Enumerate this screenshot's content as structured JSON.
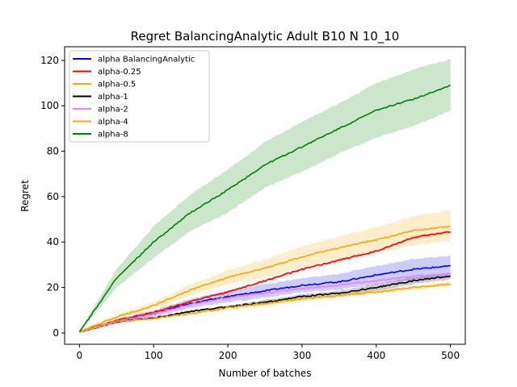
{
  "chart_data": {
    "type": "line",
    "title": "Regret BalancingAnalytic Adult B10 N 10_10",
    "xlabel": "Number of batches",
    "ylabel": "Regret",
    "xlim": [
      -20,
      520
    ],
    "ylim": [
      -5,
      126
    ],
    "xticks": [
      "0",
      "100",
      "200",
      "300",
      "400",
      "500"
    ],
    "yticks": [
      "0",
      "20",
      "40",
      "60",
      "80",
      "100",
      "120"
    ],
    "grid": false,
    "legend_position": "top-left",
    "shaded_band": "confidence interval",
    "x": [
      0,
      50,
      100,
      150,
      200,
      250,
      300,
      350,
      400,
      450,
      500
    ],
    "series": [
      {
        "name": "alpha BalancingAnalytic",
        "color": "#0000ff",
        "values": [
          0.5,
          5.0,
          8.5,
          13.0,
          16.0,
          18.5,
          21.0,
          22.5,
          25.5,
          28.0,
          29.5
        ],
        "lower": [
          0.0,
          4.0,
          7.0,
          11.0,
          13.5,
          15.5,
          18.0,
          19.0,
          21.5,
          23.5,
          25.0
        ],
        "upper": [
          1.0,
          6.0,
          10.0,
          15.0,
          18.5,
          21.5,
          24.0,
          26.0,
          29.5,
          32.5,
          34.0
        ]
      },
      {
        "name": "alpha-0.25",
        "color": "#ff0000",
        "values": [
          0.5,
          5.5,
          9.0,
          14.0,
          18.0,
          23.0,
          28.0,
          32.0,
          36.0,
          42.0,
          44.5
        ],
        "lower": [
          0.0,
          5.0,
          8.5,
          13.5,
          17.5,
          22.5,
          27.5,
          31.5,
          35.5,
          41.5,
          44.0
        ],
        "upper": [
          1.0,
          6.0,
          9.5,
          14.5,
          18.5,
          23.5,
          28.5,
          32.5,
          36.5,
          42.5,
          45.0
        ]
      },
      {
        "name": "alpha-0.5",
        "color": "#ffa500",
        "values": [
          0.5,
          7.0,
          12.0,
          19.0,
          24.5,
          28.5,
          33.5,
          37.5,
          41.0,
          45.0,
          47.0
        ],
        "lower": [
          0.0,
          6.0,
          10.5,
          16.5,
          21.5,
          24.5,
          29.0,
          32.5,
          35.5,
          38.5,
          40.5
        ],
        "upper": [
          1.0,
          8.0,
          13.5,
          21.5,
          27.5,
          32.5,
          38.0,
          42.5,
          46.5,
          51.5,
          54.0
        ]
      },
      {
        "name": "alpha-1",
        "color": "#000000",
        "values": [
          0.5,
          5.0,
          6.5,
          9.5,
          11.5,
          13.5,
          16.0,
          17.5,
          20.0,
          23.0,
          25.0
        ],
        "lower": [
          0.0,
          4.5,
          6.0,
          9.0,
          11.0,
          12.5,
          15.0,
          16.5,
          18.5,
          21.5,
          23.5
        ],
        "upper": [
          1.0,
          5.5,
          7.0,
          10.0,
          12.0,
          14.5,
          17.0,
          18.5,
          21.5,
          24.5,
          26.5
        ]
      },
      {
        "name": "alpha-2",
        "color": "#ee82ee",
        "values": [
          0.5,
          5.0,
          8.5,
          12.5,
          15.5,
          17.5,
          19.5,
          21.0,
          23.0,
          25.0,
          26.0
        ],
        "lower": [
          0.0,
          4.5,
          8.0,
          12.0,
          15.0,
          17.0,
          19.0,
          20.5,
          22.5,
          24.5,
          25.5
        ],
        "upper": [
          1.0,
          5.5,
          9.0,
          13.0,
          16.0,
          18.0,
          20.0,
          21.5,
          23.5,
          25.5,
          26.5
        ]
      },
      {
        "name": "alpha-4",
        "color": "#ffa500",
        "values": [
          0.5,
          5.0,
          6.5,
          8.5,
          11.0,
          13.0,
          15.0,
          16.5,
          18.0,
          20.0,
          21.5
        ],
        "lower": [
          0.0,
          4.5,
          6.0,
          8.0,
          10.0,
          12.0,
          14.0,
          15.5,
          17.0,
          19.0,
          20.5
        ],
        "upper": [
          1.0,
          5.5,
          7.0,
          9.0,
          12.0,
          14.0,
          16.0,
          17.5,
          19.0,
          21.0,
          22.5
        ]
      },
      {
        "name": "alpha-8",
        "color": "#008000",
        "values": [
          0.5,
          24.0,
          40.0,
          53.0,
          63.0,
          74.0,
          82.0,
          90.0,
          98.0,
          103.0,
          109.0
        ],
        "lower": [
          0.0,
          20.0,
          33.0,
          45.0,
          53.0,
          64.0,
          71.0,
          79.0,
          86.0,
          91.0,
          98.0
        ],
        "upper": [
          1.0,
          28.0,
          47.0,
          61.0,
          72.0,
          84.0,
          93.0,
          101.0,
          110.0,
          116.0,
          120.5
        ]
      }
    ]
  }
}
